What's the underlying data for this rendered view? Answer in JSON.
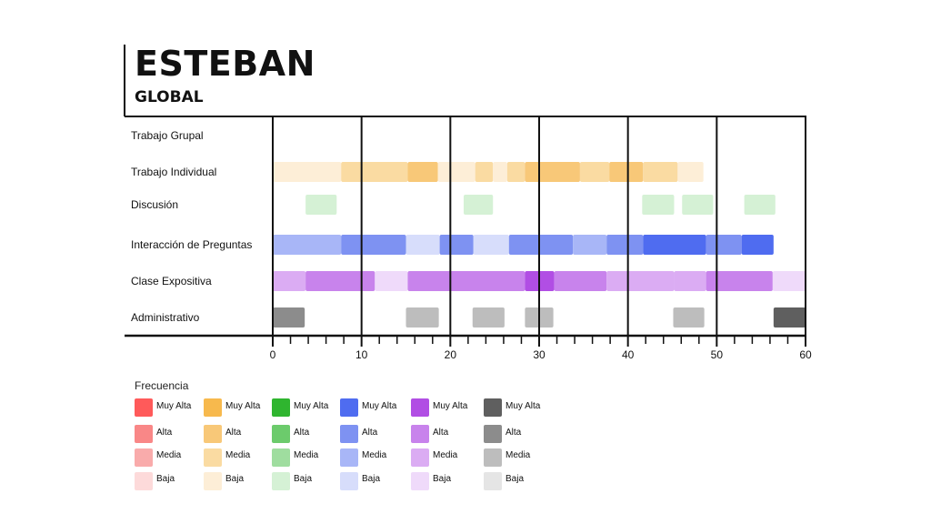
{
  "header": {
    "title": "ESTEBAN",
    "subtitle": "GLOBAL"
  },
  "chart_data": {
    "type": "timeline",
    "x_ticks": [
      0,
      10,
      20,
      30,
      40,
      50,
      60
    ],
    "xlim": [
      0,
      60
    ],
    "rows": [
      {
        "label": "Trabajo Grupal",
        "color": "#f7b94d",
        "segments": []
      },
      {
        "label": "Trabajo Individual",
        "color": "#f7b94d",
        "segments": [
          {
            "start": 0,
            "end": 7.7,
            "level": "Baja"
          },
          {
            "start": 7.7,
            "end": 15.2,
            "level": "Media"
          },
          {
            "start": 15.2,
            "end": 18.6,
            "level": "Alta"
          },
          {
            "start": 18.6,
            "end": 22.8,
            "level": "Baja"
          },
          {
            "start": 22.8,
            "end": 24.8,
            "level": "Media"
          },
          {
            "start": 24.8,
            "end": 26.4,
            "level": "Baja"
          },
          {
            "start": 26.4,
            "end": 28.4,
            "level": "Media"
          },
          {
            "start": 28.4,
            "end": 34.6,
            "level": "Alta"
          },
          {
            "start": 34.6,
            "end": 37.9,
            "level": "Media"
          },
          {
            "start": 37.9,
            "end": 41.7,
            "level": "Alta"
          },
          {
            "start": 41.7,
            "end": 45.6,
            "level": "Media"
          },
          {
            "start": 45.6,
            "end": 48.5,
            "level": "Baja"
          }
        ]
      },
      {
        "label": "Discusión",
        "color": "#3cb43c",
        "segments": [
          {
            "start": 3.7,
            "end": 7.2,
            "level": "Baja"
          },
          {
            "start": 21.5,
            "end": 24.8,
            "level": "Baja"
          },
          {
            "start": 41.6,
            "end": 45.2,
            "level": "Baja"
          },
          {
            "start": 46.1,
            "end": 49.6,
            "level": "Baja"
          },
          {
            "start": 53.1,
            "end": 56.6,
            "level": "Baja"
          }
        ]
      },
      {
        "label": "Interacción de Preguntas",
        "color": "#5b72ee",
        "segments": [
          {
            "start": 0,
            "end": 7.7,
            "level": "Media"
          },
          {
            "start": 7.7,
            "end": 15.0,
            "level": "Alta"
          },
          {
            "start": 15.0,
            "end": 18.8,
            "level": "Baja"
          },
          {
            "start": 18.8,
            "end": 22.6,
            "level": "Alta"
          },
          {
            "start": 22.6,
            "end": 26.6,
            "level": "Baja"
          },
          {
            "start": 26.6,
            "end": 33.8,
            "level": "Alta"
          },
          {
            "start": 33.8,
            "end": 37.6,
            "level": "Media"
          },
          {
            "start": 37.6,
            "end": 41.7,
            "level": "Alta"
          },
          {
            "start": 41.7,
            "end": 48.8,
            "level": "Muy Alta"
          },
          {
            "start": 48.8,
            "end": 52.8,
            "level": "Alta"
          },
          {
            "start": 52.8,
            "end": 56.4,
            "level": "Muy Alta"
          }
        ]
      },
      {
        "label": "Clase Expositiva",
        "color": "#b45ee5",
        "segments": [
          {
            "start": 0,
            "end": 3.7,
            "level": "Media"
          },
          {
            "start": 3.7,
            "end": 11.5,
            "level": "Alta"
          },
          {
            "start": 11.5,
            "end": 15.2,
            "level": "Baja"
          },
          {
            "start": 15.2,
            "end": 28.4,
            "level": "Alta"
          },
          {
            "start": 28.4,
            "end": 31.7,
            "level": "Muy Alta"
          },
          {
            "start": 31.7,
            "end": 37.6,
            "level": "Alta"
          },
          {
            "start": 37.6,
            "end": 45.2,
            "level": "Media"
          },
          {
            "start": 45.2,
            "end": 48.8,
            "level": "Media"
          },
          {
            "start": 48.8,
            "end": 56.3,
            "level": "Alta"
          },
          {
            "start": 56.3,
            "end": 60,
            "level": "Baja"
          }
        ]
      },
      {
        "label": "Administrativo",
        "color": "#666666",
        "segments": [
          {
            "start": 0,
            "end": 3.6,
            "level": "Alta"
          },
          {
            "start": 15.0,
            "end": 18.7,
            "level": "Media"
          },
          {
            "start": 22.5,
            "end": 26.1,
            "level": "Media"
          },
          {
            "start": 28.4,
            "end": 31.6,
            "level": "Media"
          },
          {
            "start": 45.1,
            "end": 48.6,
            "level": "Media"
          },
          {
            "start": 56.4,
            "end": 60,
            "level": "Muy Alta"
          }
        ]
      }
    ],
    "legend": {
      "title": "Frecuencia",
      "levels": [
        "Muy Alta",
        "Alta",
        "Media",
        "Baja"
      ],
      "palettes": [
        {
          "Muy Alta": "#ff5a5a",
          "Alta": "#f98787",
          "Media": "#f9abab",
          "Baja": "#fddada"
        },
        {
          "Muy Alta": "#f7b94d",
          "Alta": "#f8c878",
          "Media": "#fadba2",
          "Baja": "#fdeed7"
        },
        {
          "Muy Alta": "#2fb52f",
          "Alta": "#6ccb6c",
          "Media": "#9fdd9f",
          "Baja": "#d5f1d5"
        },
        {
          "Muy Alta": "#4f6cf0",
          "Alta": "#7e92f2",
          "Media": "#a8b6f7",
          "Baja": "#d7ddfb"
        },
        {
          "Muy Alta": "#b14ee4",
          "Alta": "#c883ec",
          "Media": "#dbacf3",
          "Baja": "#efdafa"
        },
        {
          "Muy Alta": "#5f5f5f",
          "Alta": "#8c8c8c",
          "Media": "#bdbdbd",
          "Baja": "#e5e5e5"
        }
      ]
    }
  }
}
